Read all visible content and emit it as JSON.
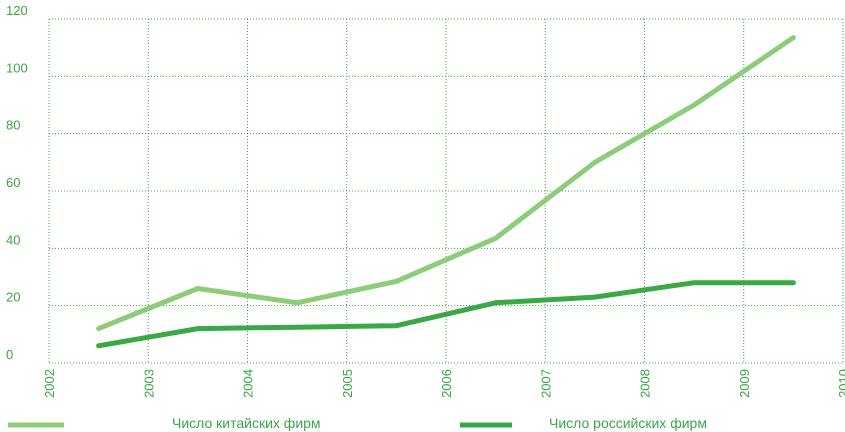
{
  "chart_data": {
    "type": "line",
    "title": "",
    "xlabel": "",
    "ylabel": "",
    "xlim": [
      2002,
      2010
    ],
    "ylim": [
      0,
      120
    ],
    "x_ticks": [
      "2002",
      "2003",
      "2004",
      "2005",
      "2006",
      "2007",
      "2008",
      "2009",
      "2010"
    ],
    "y_ticks": [
      "0",
      "20",
      "40",
      "60",
      "80",
      "100",
      "120"
    ],
    "grid": true,
    "legend_position": "bottom",
    "x": [
      2002.5,
      2003.5,
      2004.5,
      2005.5,
      2006.5,
      2007.5,
      2008.5,
      2009.5
    ],
    "series": [
      {
        "name": "Число китайских фирм",
        "color": "#8ccc7a",
        "values": [
          12,
          26,
          21,
          28.5,
          43.5,
          70,
          90,
          113.5
        ]
      },
      {
        "name": "Число российских фирм",
        "color": "#3aa845",
        "values": [
          6,
          12,
          12.5,
          13,
          21,
          23,
          28,
          28
        ]
      }
    ]
  }
}
